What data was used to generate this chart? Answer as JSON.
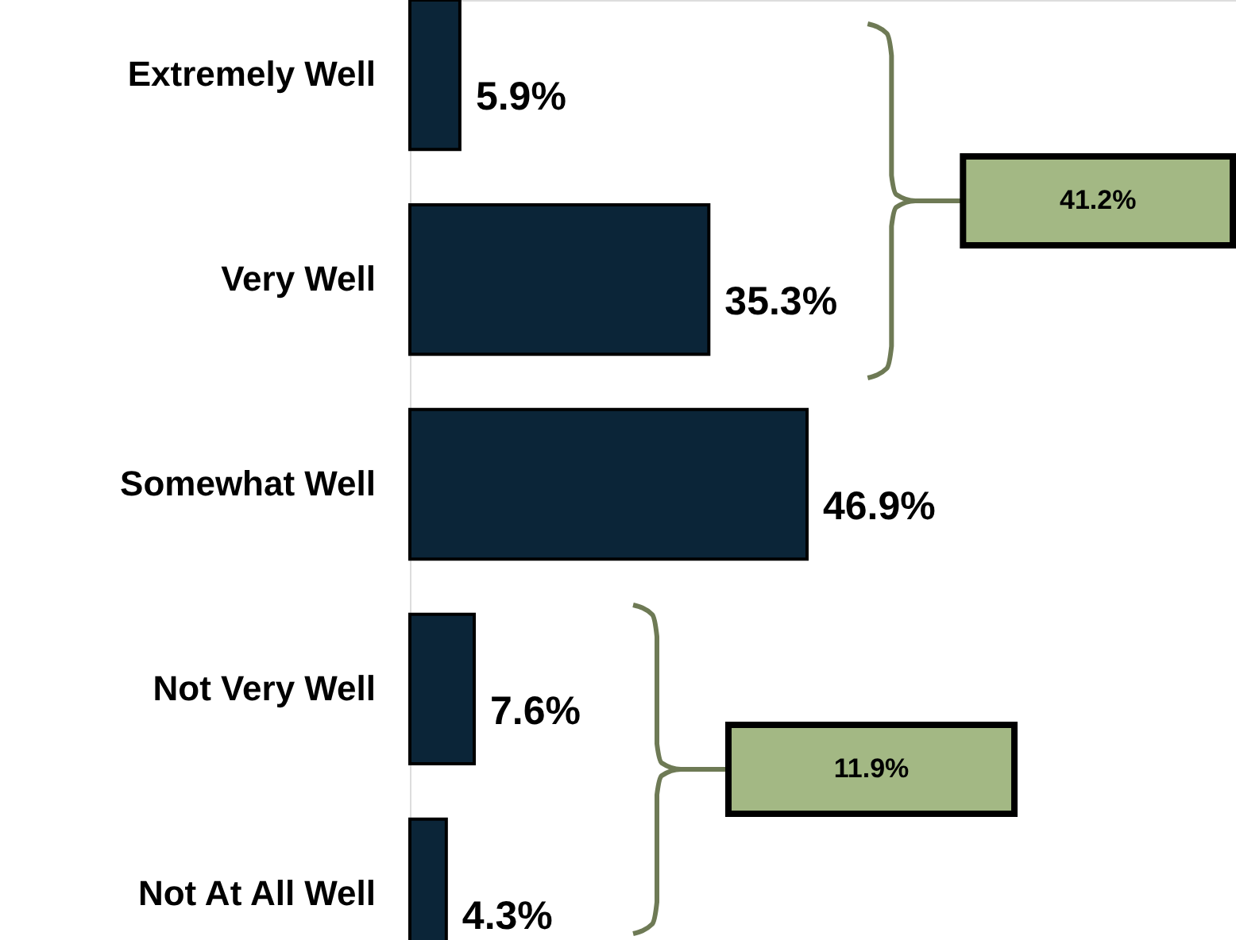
{
  "chart_data": {
    "type": "bar",
    "orientation": "horizontal",
    "categories": [
      "Extremely Well",
      "Very Well",
      "Somewhat Well",
      "Not Very Well",
      "Not At All Well"
    ],
    "values": [
      5.9,
      35.3,
      46.9,
      7.6,
      4.3
    ],
    "color": "#0b2538",
    "value_labels": [
      "5.9%",
      "35.3%",
      "46.9%",
      "7.6%",
      "4.3%"
    ],
    "tick_labels": "y",
    "annotations": [
      "41.2%",
      "11.9%"
    ]
  }
}
